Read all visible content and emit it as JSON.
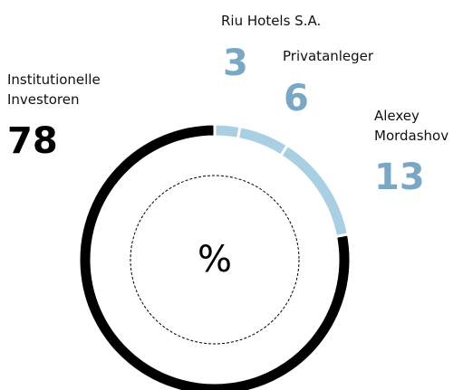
{
  "chart_data": {
    "type": "pie",
    "donut": true,
    "center_label": "%",
    "categories": [
      "Riu Hotels S.A.",
      "Privatanleger",
      "Alexey Mordashov",
      "Institutionelle Investoren"
    ],
    "values": [
      3,
      6,
      13,
      78
    ],
    "colors": [
      "#a9d0e2",
      "#a9d0e2",
      "#a9d0e2",
      "#000000"
    ],
    "label_colors": [
      "#7aa7c4",
      "#7aa7c4",
      "#7aa7c4",
      "#000000"
    ]
  }
}
